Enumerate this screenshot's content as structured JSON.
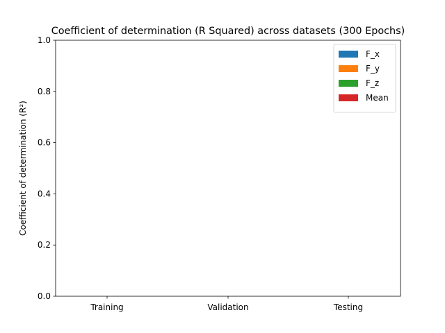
{
  "chart_data": {
    "type": "bar",
    "title": "Coefficient of determination (R Squared) across datasets (300 Epochs)",
    "xlabel": "",
    "ylabel": "Coefficient of determination (R²)",
    "categories": [
      "Training",
      "Validation",
      "Testing"
    ],
    "series": [
      {
        "name": "F_x",
        "color": "#1f77b4",
        "values": [
          0,
          0,
          0
        ]
      },
      {
        "name": "F_y",
        "color": "#ff7f0e",
        "values": [
          0,
          0,
          0
        ]
      },
      {
        "name": "F_z",
        "color": "#2ca02c",
        "values": [
          0,
          0,
          0
        ]
      },
      {
        "name": "Mean",
        "color": "#d62728",
        "values": [
          0,
          0,
          0
        ]
      }
    ],
    "ylim": [
      0,
      1
    ],
    "yticks": [
      "0.0",
      "0.2",
      "0.4",
      "0.6",
      "0.8",
      "1.0"
    ],
    "grid": false,
    "legend_position": "top-right"
  }
}
